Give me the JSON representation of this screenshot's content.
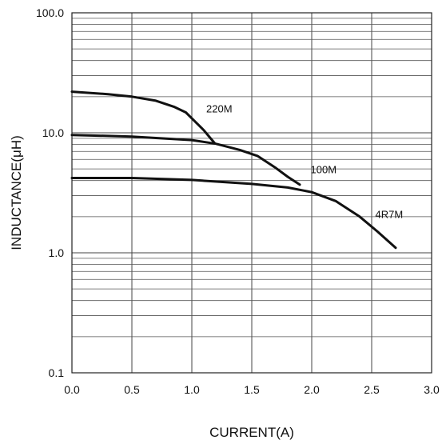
{
  "chart_data": {
    "type": "line",
    "xlabel": "CURRENT(A)",
    "ylabel": "INDUCTANCE(μH)",
    "xlim": [
      0,
      3
    ],
    "ylim": [
      0.1,
      100
    ],
    "yscale": "log",
    "grid": true,
    "x_ticks": [
      "0.0",
      "0.5",
      "1.0",
      "1.5",
      "2.0",
      "2.5",
      "3.0"
    ],
    "y_ticks": [
      "0.1",
      "1.0",
      "10.0",
      "100.0"
    ],
    "series": [
      {
        "name": "220M",
        "x": [
          0.0,
          0.3,
          0.5,
          0.7,
          0.85,
          0.95,
          1.0,
          1.1,
          1.19
        ],
        "y": [
          22,
          21,
          20,
          18.5,
          16.5,
          14.8,
          13.2,
          10.5,
          8.2
        ]
      },
      {
        "name": "100M",
        "x": [
          0.0,
          0.5,
          1.0,
          1.2,
          1.4,
          1.55,
          1.7,
          1.8,
          1.9
        ],
        "y": [
          9.6,
          9.3,
          8.7,
          8.1,
          7.2,
          6.4,
          5.1,
          4.3,
          3.7
        ]
      },
      {
        "name": "4R7M",
        "x": [
          0.0,
          0.5,
          1.0,
          1.5,
          1.8,
          2.0,
          2.2,
          2.4,
          2.55,
          2.7
        ],
        "y": [
          4.2,
          4.2,
          4.05,
          3.75,
          3.5,
          3.2,
          2.7,
          2.0,
          1.5,
          1.1
        ]
      }
    ]
  }
}
